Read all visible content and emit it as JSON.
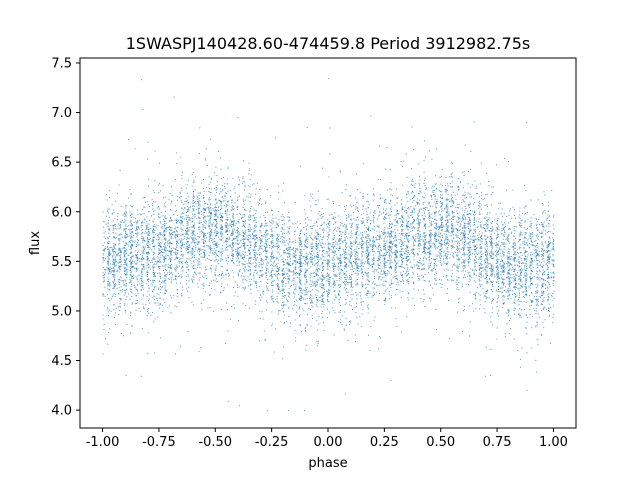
{
  "chart_data": {
    "type": "scatter",
    "title": "1SWASPJ140428.60-474459.8 Period 3912982.75s",
    "xlabel": "phase",
    "ylabel": "flux",
    "xlim": [
      -1.1,
      1.1
    ],
    "ylim": [
      3.82,
      7.55
    ],
    "xticks": [
      "-1.00",
      "-0.75",
      "-0.50",
      "-0.25",
      "0.00",
      "0.25",
      "0.50",
      "0.75",
      "1.00"
    ],
    "yticks": [
      "4.0",
      "4.5",
      "5.0",
      "5.5",
      "6.0",
      "6.5",
      "7.0",
      "7.5"
    ],
    "point_color": "#1f77b4",
    "grid": false,
    "series": [
      {
        "x_range": [
          -1.0,
          1.0
        ],
        "y_range": [
          4.0,
          7.35
        ],
        "mean_flux_profile": {
          "phase": [
            -1.0,
            -0.9,
            -0.8,
            -0.7,
            -0.6,
            -0.5,
            -0.4,
            -0.3,
            -0.2,
            -0.1,
            0.0,
            0.1,
            0.2,
            0.3,
            0.4,
            0.5,
            0.6,
            0.7,
            0.8,
            0.9,
            1.0
          ],
          "flux": [
            5.5,
            5.55,
            5.6,
            5.65,
            5.75,
            5.85,
            5.75,
            5.6,
            5.45,
            5.45,
            5.5,
            5.55,
            5.6,
            5.65,
            5.75,
            5.85,
            5.75,
            5.6,
            5.45,
            5.45,
            5.5
          ]
        }
      }
    ]
  }
}
